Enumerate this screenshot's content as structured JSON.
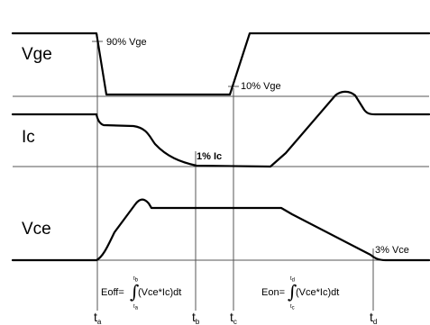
{
  "signals": {
    "vge": "Vge",
    "ic": "Ic",
    "vce": "Vce"
  },
  "annotations": {
    "vge_90": "90% Vge",
    "vge_10": "10% Vge",
    "ic_1": "1% Ic",
    "vce_3": "3% Vce"
  },
  "time_marks": {
    "ta": "a",
    "tb": "b",
    "tc": "c",
    "td": "d",
    "t": "t"
  },
  "energy": {
    "eoff_prefix": "Eoff=",
    "eoff_body": "(Vce*Ic)dt",
    "eoff_upper": "b",
    "eoff_lower": "a",
    "eon_prefix": "Eon=",
    "eon_body": "(Vce*Ic)dt",
    "eon_upper": "d",
    "eon_lower": "c"
  }
}
